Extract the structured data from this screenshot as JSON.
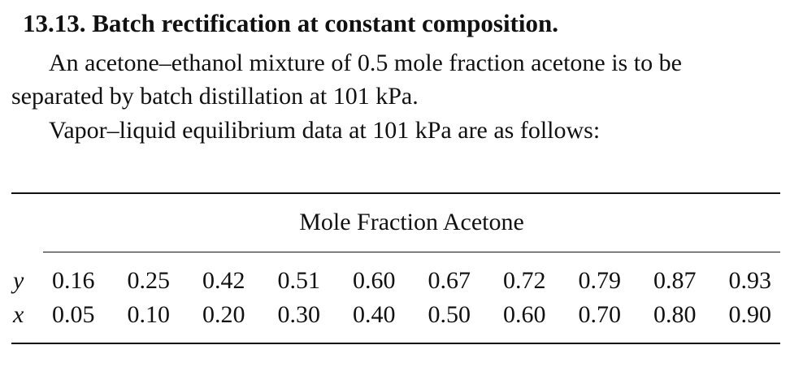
{
  "problem": {
    "title": "13.13.  Batch rectification at constant composition.",
    "paragraph1_line1": "An acetone–ethanol mixture of 0.5 mole fraction acetone is to be",
    "paragraph1_line2": "separated by batch distillation at 101 kPa.",
    "paragraph2": "Vapor–liquid equilibrium data at 101 kPa are as follows:"
  },
  "table": {
    "column_header": "Mole Fraction Acetone",
    "rows": [
      {
        "label": "y",
        "values": [
          "0.16",
          "0.25",
          "0.42",
          "0.51",
          "0.60",
          "0.67",
          "0.72",
          "0.79",
          "0.87",
          "0.93"
        ]
      },
      {
        "label": "x",
        "values": [
          "0.05",
          "0.10",
          "0.20",
          "0.30",
          "0.40",
          "0.50",
          "0.60",
          "0.70",
          "0.80",
          "0.90"
        ]
      }
    ]
  }
}
